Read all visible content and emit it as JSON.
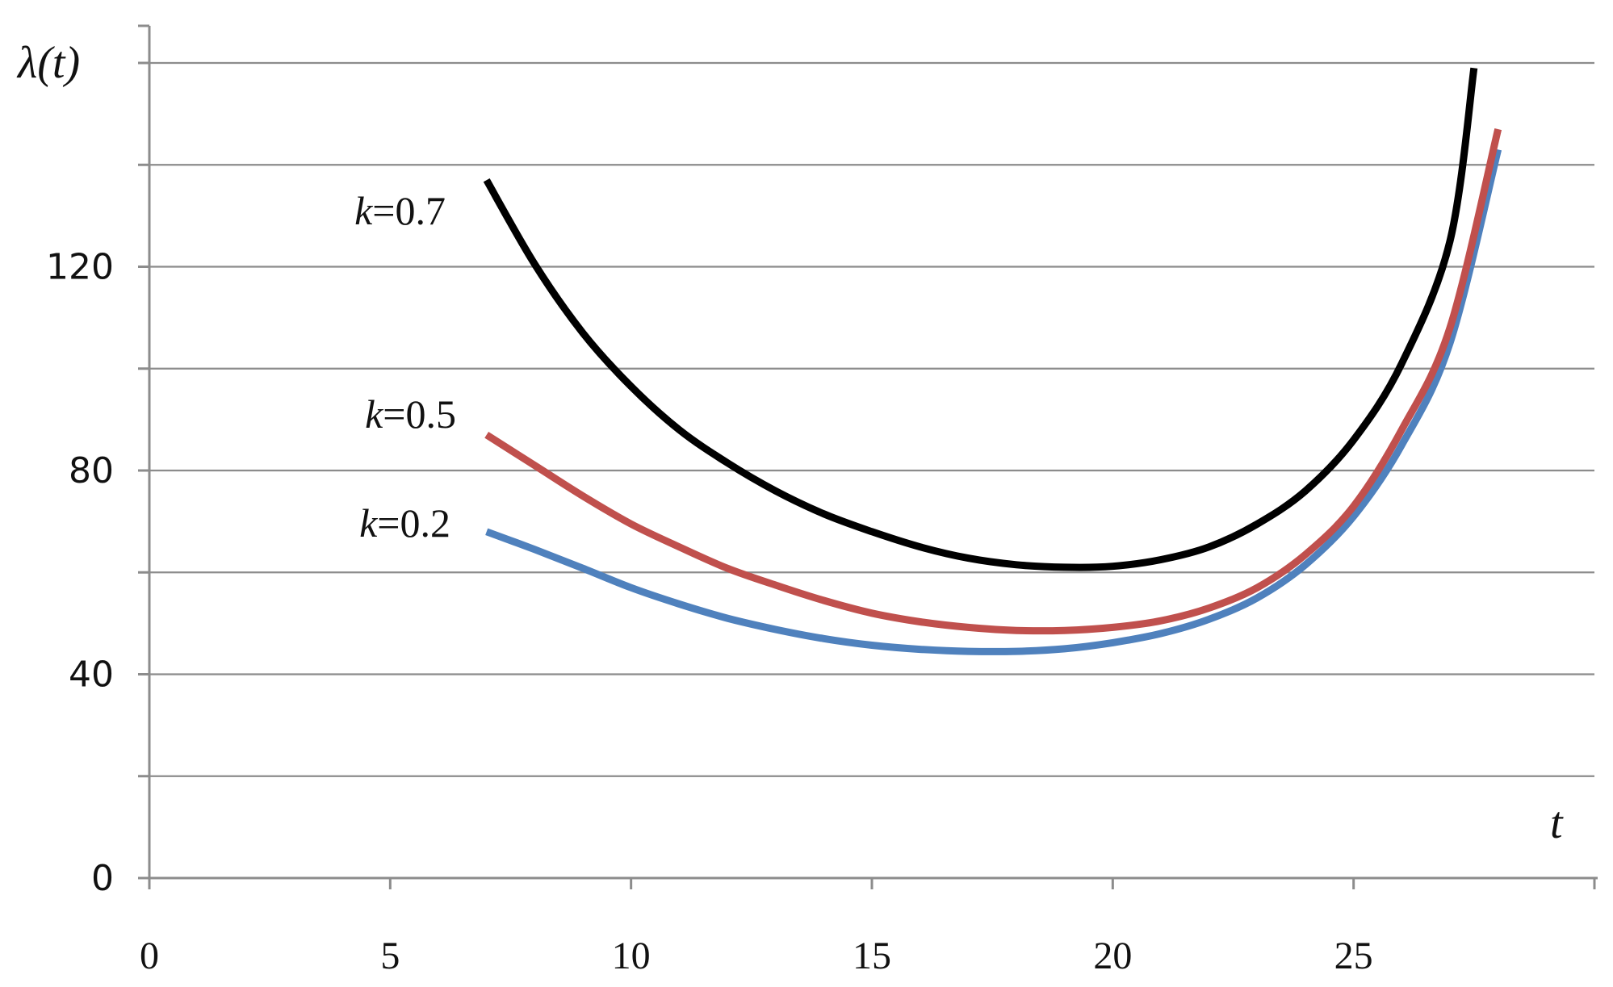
{
  "chart_data": {
    "type": "line",
    "title": "",
    "xlabel": "t",
    "ylabel": "λ(t)",
    "xlim": [
      0,
      30
    ],
    "ylim": [
      0,
      160
    ],
    "xticks": [
      "0",
      "5",
      "10",
      "15",
      "20",
      "25"
    ],
    "xtick_values": [
      0,
      5,
      10,
      15,
      20,
      25
    ],
    "yticks": [
      "0",
      "40",
      "80",
      "120"
    ],
    "ytick_values": [
      0,
      40,
      80,
      120
    ],
    "gridlines_y": [
      0,
      20,
      40,
      60,
      80,
      100,
      120,
      140,
      160
    ],
    "grid": "horizontal",
    "series": [
      {
        "name": "k=0.7",
        "k_text": "k",
        "value_text": "=0.7",
        "color": "#000000",
        "x": [
          7,
          8,
          9,
          10,
          11,
          12,
          13,
          14,
          15,
          16,
          17,
          18,
          19,
          20,
          21,
          22,
          23,
          24,
          25,
          26,
          27,
          27.5
        ],
        "y": [
          137,
          120.5,
          107,
          96.5,
          88,
          81.5,
          76,
          71.5,
          68,
          65,
          62.8,
          61.5,
          61,
          61.2,
          62.5,
          65,
          69.5,
          76,
          86,
          101,
          125,
          159
        ]
      },
      {
        "name": "k=0.5",
        "k_text": "k",
        "value_text": "=0.5",
        "color": "#c0504d",
        "x": [
          7,
          8,
          9,
          10,
          11,
          12,
          13,
          14,
          15,
          16,
          17,
          18,
          19,
          20,
          21,
          22,
          23,
          24,
          25,
          26,
          27,
          28
        ],
        "y": [
          87,
          81,
          75,
          69.5,
          65,
          60.8,
          57.5,
          54.5,
          52,
          50.3,
          49.2,
          48.6,
          48.6,
          49.2,
          50.5,
          53,
          57,
          63.5,
          73,
          88,
          108,
          147
        ]
      },
      {
        "name": "k=0.2",
        "k_text": "k",
        "value_text": "=0.2",
        "color": "#4f81bd",
        "x": [
          7,
          8,
          9,
          10,
          11,
          12,
          13,
          14,
          15,
          16,
          17,
          18,
          19,
          20,
          21,
          22,
          23,
          24,
          25,
          26,
          27,
          28
        ],
        "y": [
          68,
          64.5,
          60.8,
          57,
          53.8,
          51,
          48.8,
          47,
          45.7,
          44.9,
          44.5,
          44.5,
          45,
          46.2,
          48,
          50.8,
          55,
          61.5,
          71,
          85,
          105,
          143
        ]
      }
    ]
  }
}
